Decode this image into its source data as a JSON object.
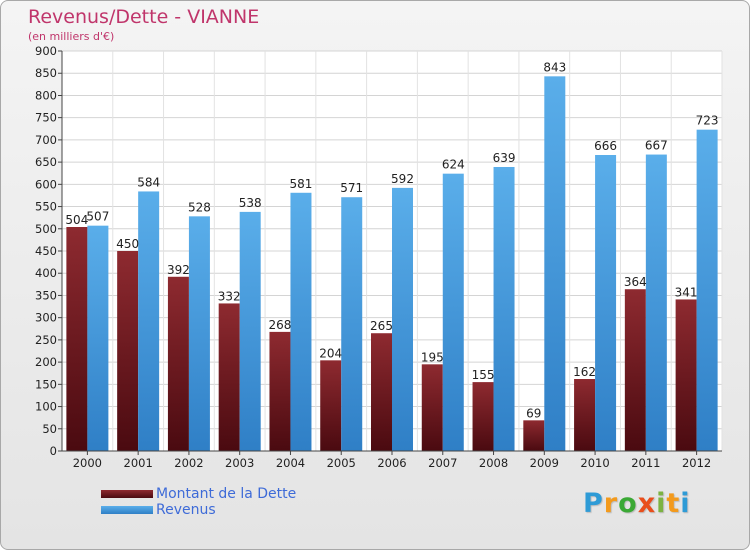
{
  "header": {
    "title": "Revenus/Dette - VIANNE",
    "subtitle": "(en milliers d'€)"
  },
  "logo": {
    "letters": [
      "P",
      "r",
      "o",
      "x",
      "i",
      "t",
      "i"
    ]
  },
  "colors": {
    "title": "#c0356b",
    "debt_top": "#8e2a30",
    "debt_bottom": "#4a0a10",
    "revenue_top": "#5aaeea",
    "revenue_bottom": "#2f7fc6"
  },
  "chart_data": {
    "type": "bar",
    "title": "Revenus/Dette - VIANNE",
    "subtitle": "(en milliers d'€)",
    "categories": [
      "2000",
      "2001",
      "2002",
      "2003",
      "2004",
      "2005",
      "2006",
      "2007",
      "2008",
      "2009",
      "2010",
      "2011",
      "2012"
    ],
    "series": [
      {
        "name": "Montant de la Dette",
        "values": [
          504,
          450,
          392,
          332,
          268,
          204,
          265,
          195,
          155,
          69,
          162,
          364,
          341
        ]
      },
      {
        "name": "Revenus",
        "values": [
          507,
          584,
          528,
          538,
          581,
          571,
          592,
          624,
          639,
          843,
          666,
          667,
          723
        ]
      }
    ],
    "ylim": [
      0,
      900
    ],
    "yticks": [
      0,
      50,
      100,
      150,
      200,
      250,
      300,
      350,
      400,
      450,
      500,
      550,
      600,
      650,
      700,
      750,
      800,
      850,
      900
    ],
    "grid": true,
    "legend": "bottom-left"
  }
}
